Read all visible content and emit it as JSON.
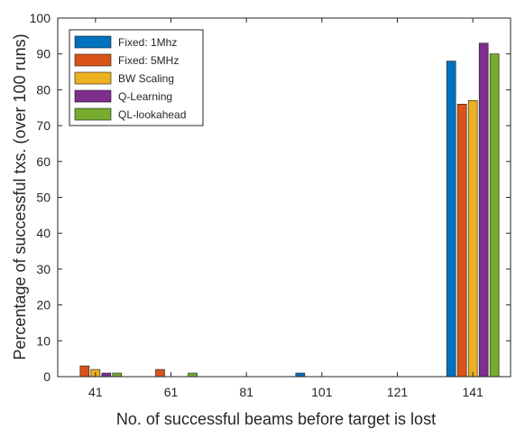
{
  "chart_data": {
    "type": "bar",
    "xlabel": "No. of successful beams before target is lost",
    "ylabel": "Percentage of successful txs. (over 100 runs)",
    "ylim": [
      0,
      100
    ],
    "yticks": [
      0,
      10,
      20,
      30,
      40,
      50,
      60,
      70,
      80,
      90,
      100
    ],
    "categories": [
      "41",
      "61",
      "81",
      "101",
      "121",
      "141"
    ],
    "legend_position": "top-left",
    "grid": false,
    "series": [
      {
        "name": "Fixed: 1Mhz",
        "color": "#0072BD",
        "values": [
          0,
          0,
          0,
          1,
          0,
          88
        ]
      },
      {
        "name": "Fixed: 5MHz",
        "color": "#D95319",
        "values": [
          3,
          2,
          0,
          0,
          0,
          76
        ]
      },
      {
        "name": "BW Scaling",
        "color": "#EDB120",
        "values": [
          2,
          0,
          0,
          0,
          0,
          77
        ]
      },
      {
        "name": "Q-Learning",
        "color": "#7E2F8E",
        "values": [
          1,
          0,
          0,
          0,
          0,
          93
        ]
      },
      {
        "name": "QL-lookahead",
        "color": "#77AC30",
        "values": [
          1,
          1,
          0,
          0,
          0,
          90
        ]
      }
    ]
  }
}
